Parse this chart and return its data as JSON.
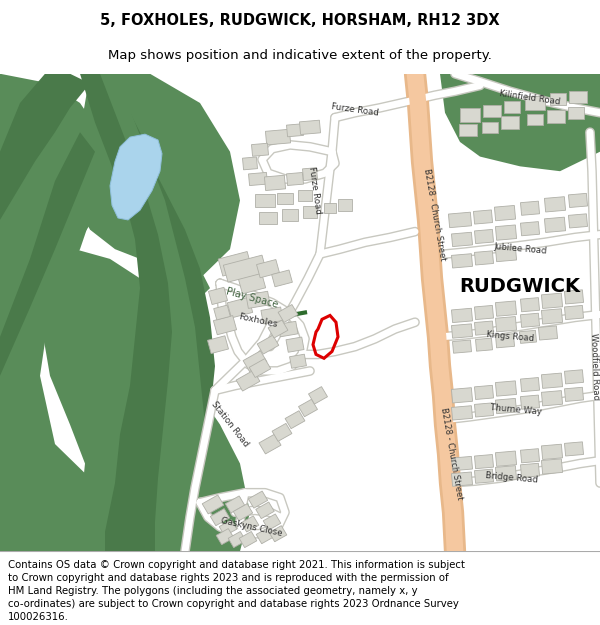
{
  "title": "5, FOXHOLES, RUDGWICK, HORSHAM, RH12 3DX",
  "subtitle": "Map shows position and indicative extent of the property.",
  "footer_lines": [
    "Contains OS data © Crown copyright and database right 2021. This information is subject",
    "to Crown copyright and database rights 2023 and is reproduced with the permission of",
    "HM Land Registry. The polygons (including the associated geometry, namely x, y",
    "co-ordinates) are subject to Crown copyright and database rights 2023 Ordnance Survey",
    "100026316."
  ],
  "map_bg": "#ffffff",
  "green": "#598c59",
  "green_dark": "#4a7a4a",
  "blue": "#aad4ec",
  "road_salmon": "#f5c8a0",
  "road_salmon_edge": "#e8b88a",
  "road_white": "#ffffff",
  "road_edge": "#c8c8c0",
  "bld_fill": "#d8d8d0",
  "bld_edge": "#b0b0a8",
  "red_plot": "#dd0000",
  "green_stripe": "#3d6b3d"
}
